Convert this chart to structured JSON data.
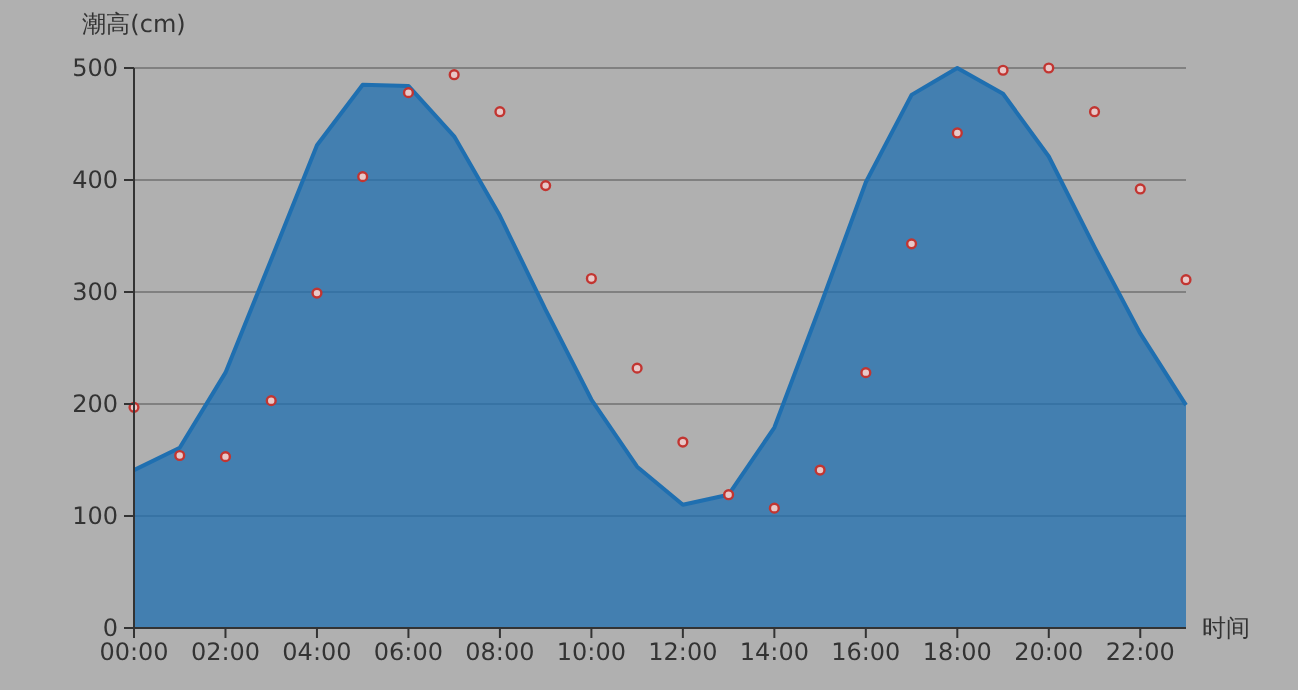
{
  "chart_data": {
    "type": "area",
    "ylabel": "潮高(cm)",
    "xlabel": "时间",
    "x": [
      0,
      1,
      2,
      3,
      4,
      5,
      6,
      7,
      8,
      9,
      10,
      11,
      12,
      13,
      14,
      15,
      16,
      17,
      18,
      19,
      20,
      21,
      22,
      23
    ],
    "series": [
      {
        "color": "#1f6fb0",
        "values": [
          141,
          161,
          228,
          329,
          431,
          485,
          484,
          439,
          368,
          284,
          204,
          144,
          110,
          119,
          179,
          287,
          398,
          476,
          500,
          477,
          421,
          340,
          263,
          199
        ]
      },
      {
        "type": "scatter",
        "color": "#c23531",
        "marker": "circle",
        "values": [
          197,
          154,
          153,
          203,
          299,
          403,
          478,
          494,
          461,
          395,
          312,
          232,
          166,
          119,
          107,
          141,
          228,
          343,
          442,
          498,
          500,
          461,
          392,
          311
        ]
      }
    ],
    "xlim": [
      0,
      23
    ],
    "xticks": [
      {
        "value": 0,
        "label": "00:00"
      },
      {
        "value": 2,
        "label": "02:00"
      },
      {
        "value": 4,
        "label": "04:00"
      },
      {
        "value": 6,
        "label": "06:00"
      },
      {
        "value": 8,
        "label": "08:00"
      },
      {
        "value": 10,
        "label": "10:00"
      },
      {
        "value": 12,
        "label": "12:00"
      },
      {
        "value": 14,
        "label": "14:00"
      },
      {
        "value": 16,
        "label": "16:00"
      },
      {
        "value": 18,
        "label": "18:00"
      },
      {
        "value": 20,
        "label": "20:00"
      },
      {
        "value": 22,
        "label": "22:00"
      }
    ],
    "ylim": [
      0,
      500
    ],
    "yticks": [
      0,
      100,
      200,
      300,
      400,
      500
    ],
    "grid": "y"
  }
}
